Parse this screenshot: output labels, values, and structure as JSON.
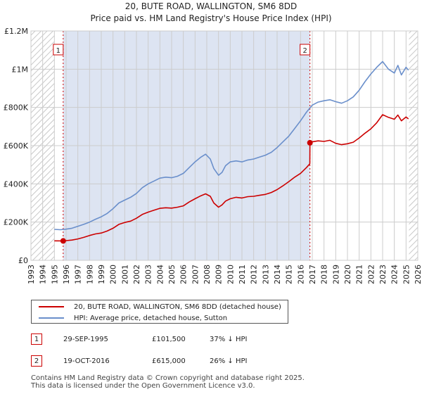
{
  "chart_data": {
    "type": "line",
    "title": "20, BUTE ROAD, WALLINGTON, SM6 8DD",
    "subtitle": "Price paid vs. HM Land Registry's House Price Index (HPI)",
    "xlim": [
      1993,
      2026
    ],
    "ylim": [
      0,
      1200000
    ],
    "x_ticks": [
      "1993",
      "1994",
      "1995",
      "1996",
      "1997",
      "1998",
      "1999",
      "2000",
      "2001",
      "2002",
      "2003",
      "2004",
      "2005",
      "2006",
      "2007",
      "2008",
      "2009",
      "2010",
      "2011",
      "2012",
      "2013",
      "2014",
      "2015",
      "2016",
      "2017",
      "2018",
      "2019",
      "2020",
      "2021",
      "2022",
      "2023",
      "2024",
      "2025",
      "2026"
    ],
    "y_ticks": [
      {
        "value": 0,
        "label": "£0"
      },
      {
        "value": 200000,
        "label": "£200K"
      },
      {
        "value": 400000,
        "label": "£400K"
      },
      {
        "value": 600000,
        "label": "£600K"
      },
      {
        "value": 800000,
        "label": "£800K"
      },
      {
        "value": 1000000,
        "label": "£1M"
      },
      {
        "value": 1200000,
        "label": "£1.2M"
      }
    ],
    "grid": true,
    "hatched_ranges": [
      [
        1993,
        1995.0
      ],
      [
        2025.25,
        2026
      ]
    ],
    "shaded_range": [
      1995.75,
      2016.8
    ],
    "series": [
      {
        "name": "20, BUTE ROAD, WALLINGTON, SM6 8DD (detached house)",
        "color": "#cc0000",
        "x": [
          1995.0,
          1995.75,
          1996.0,
          1996.5,
          1997.0,
          1997.5,
          1998.0,
          1998.5,
          1999.0,
          1999.5,
          2000.0,
          2000.5,
          2001.0,
          2001.5,
          2002.0,
          2002.5,
          2003.0,
          2003.5,
          2004.0,
          2004.5,
          2005.0,
          2005.5,
          2006.0,
          2006.5,
          2007.0,
          2007.5,
          2007.9,
          2008.3,
          2008.6,
          2009.0,
          2009.3,
          2009.6,
          2010.0,
          2010.5,
          2011.0,
          2011.5,
          2012.0,
          2012.5,
          2013.0,
          2013.5,
          2014.0,
          2014.5,
          2015.0,
          2015.5,
          2016.0,
          2016.5,
          2016.79,
          2016.8,
          2017.0,
          2017.5,
          2018.0,
          2018.5,
          2019.0,
          2019.5,
          2020.0,
          2020.5,
          2021.0,
          2021.5,
          2022.0,
          2022.5,
          2023.0,
          2023.5,
          2024.0,
          2024.3,
          2024.6,
          2025.0,
          2025.2
        ],
        "values": [
          102000,
          101500,
          103000,
          106000,
          112000,
          120000,
          130000,
          138000,
          143000,
          153000,
          168000,
          188000,
          198000,
          205000,
          220000,
          240000,
          252000,
          262000,
          272000,
          275000,
          273000,
          278000,
          285000,
          305000,
          322000,
          338000,
          348000,
          335000,
          300000,
          278000,
          290000,
          310000,
          322000,
          330000,
          326000,
          333000,
          335000,
          340000,
          345000,
          355000,
          370000,
          390000,
          412000,
          435000,
          455000,
          485000,
          505000,
          615000,
          620000,
          625000,
          622000,
          628000,
          612000,
          605000,
          610000,
          618000,
          640000,
          665000,
          688000,
          720000,
          762000,
          748000,
          738000,
          760000,
          730000,
          750000,
          740000
        ]
      },
      {
        "name": "HPI: Average price, detached house, Sutton",
        "color": "#6a8fcb",
        "x": [
          1995.0,
          1995.5,
          1996.0,
          1996.5,
          1997.0,
          1997.5,
          1998.0,
          1998.5,
          1999.0,
          1999.5,
          2000.0,
          2000.5,
          2001.0,
          2001.5,
          2002.0,
          2002.5,
          2003.0,
          2003.5,
          2004.0,
          2004.5,
          2005.0,
          2005.5,
          2006.0,
          2006.5,
          2007.0,
          2007.5,
          2007.9,
          2008.3,
          2008.6,
          2009.0,
          2009.3,
          2009.6,
          2010.0,
          2010.5,
          2011.0,
          2011.5,
          2012.0,
          2012.5,
          2013.0,
          2013.5,
          2014.0,
          2014.5,
          2015.0,
          2015.5,
          2016.0,
          2016.5,
          2017.0,
          2017.5,
          2018.0,
          2018.5,
          2019.0,
          2019.5,
          2020.0,
          2020.5,
          2021.0,
          2021.5,
          2022.0,
          2022.5,
          2023.0,
          2023.5,
          2024.0,
          2024.3,
          2024.6,
          2025.0,
          2025.2
        ],
        "values": [
          162000,
          160000,
          163000,
          168000,
          178000,
          188000,
          200000,
          215000,
          228000,
          245000,
          270000,
          300000,
          315000,
          330000,
          350000,
          380000,
          400000,
          415000,
          430000,
          435000,
          432000,
          440000,
          455000,
          485000,
          515000,
          540000,
          555000,
          530000,
          480000,
          445000,
          460000,
          495000,
          515000,
          520000,
          515000,
          525000,
          530000,
          540000,
          550000,
          565000,
          590000,
          620000,
          650000,
          690000,
          730000,
          775000,
          812000,
          828000,
          835000,
          840000,
          830000,
          822000,
          835000,
          855000,
          890000,
          935000,
          975000,
          1010000,
          1040000,
          1000000,
          980000,
          1020000,
          970000,
          1010000,
          995000
        ]
      }
    ],
    "sales": [
      {
        "marker": "1",
        "x": 1995.75,
        "y": 101500
      },
      {
        "marker": "2",
        "x": 2016.8,
        "y": 615000
      }
    ]
  },
  "legend": {
    "property": "20, BUTE ROAD, WALLINGTON, SM6 8DD (detached house)",
    "hpi": "HPI: Average price, detached house, Sutton"
  },
  "sales_table": [
    {
      "marker": "1",
      "date": "29-SEP-1995",
      "price": "£101,500",
      "diff": "37% ↓ HPI"
    },
    {
      "marker": "2",
      "date": "19-OCT-2016",
      "price": "£615,000",
      "diff": "26% ↓ HPI"
    }
  ],
  "footer": {
    "line1": "Contains HM Land Registry data © Crown copyright and database right 2025.",
    "line2": "This data is licensed under the Open Government Licence v3.0."
  },
  "colors": {
    "property": "#cc0000",
    "hpi": "#6a8fcb",
    "shade": "#dde4f2",
    "grid": "#cccccc"
  }
}
